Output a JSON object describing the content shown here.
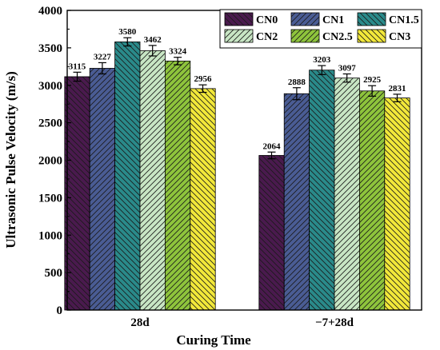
{
  "chart_data": {
    "type": "bar",
    "title": "",
    "xlabel": "Curing Time",
    "ylabel": "Ultrasonic Pulse Velocity (m/s)",
    "ylim": [
      0,
      4000
    ],
    "yticks": [
      0,
      500,
      1000,
      1500,
      2000,
      2500,
      3000,
      3500,
      4000
    ],
    "categories": [
      "28d",
      "−7+28d"
    ],
    "grid": false,
    "legend_position": "top-right",
    "series": [
      {
        "name": "CN0",
        "values": [
          3115,
          2064
        ],
        "errors": [
          60,
          45
        ],
        "color": "#4a1a4e",
        "hatch": "backslash"
      },
      {
        "name": "CN1",
        "values": [
          3227,
          2888
        ],
        "errors": [
          75,
          80
        ],
        "color": "#4a5c94",
        "hatch": "slash"
      },
      {
        "name": "CN1.5",
        "values": [
          3580,
          3203
        ],
        "errors": [
          55,
          60
        ],
        "color": "#2a8a8a",
        "hatch": "backslash"
      },
      {
        "name": "CN2",
        "values": [
          3462,
          3097
        ],
        "errors": [
          70,
          55
        ],
        "color": "#c8e6c4",
        "hatch": "slash"
      },
      {
        "name": "CN2.5",
        "values": [
          3324,
          2925
        ],
        "errors": [
          50,
          70
        ],
        "color": "#8ec43c",
        "hatch": "slash"
      },
      {
        "name": "CN3",
        "values": [
          2956,
          2831
        ],
        "errors": [
          50,
          50
        ],
        "color": "#f2e83a",
        "hatch": "backslash"
      }
    ]
  }
}
